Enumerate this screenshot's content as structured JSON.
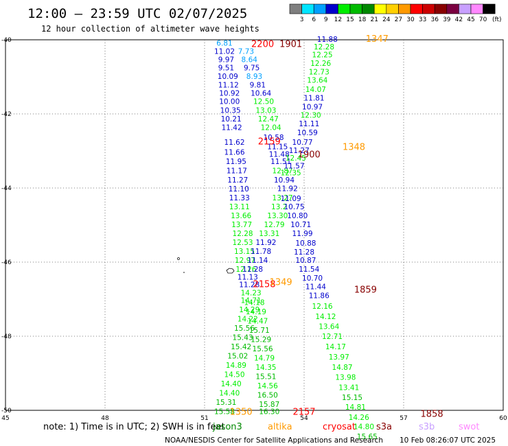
{
  "header": {
    "title": "12:00 — 23:59 UTC 02/07/2025",
    "subtitle": "12 hour collection of altimeter wave heights"
  },
  "legend": {
    "unit": "(ft)",
    "bins": [
      {
        "label": "3",
        "color": "#7f7f7f"
      },
      {
        "label": "6",
        "color": "#00e5ff"
      },
      {
        "label": "9",
        "color": "#00a0ff"
      },
      {
        "label": "12",
        "color": "#0000cc"
      },
      {
        "label": "15",
        "color": "#00ee00"
      },
      {
        "label": "18",
        "color": "#00bb00"
      },
      {
        "label": "21",
        "color": "#008800"
      },
      {
        "label": "24",
        "color": "#ffff00"
      },
      {
        "label": "27",
        "color": "#ffd000"
      },
      {
        "label": "30",
        "color": "#ff9a00"
      },
      {
        "label": "33",
        "color": "#ff0000"
      },
      {
        "label": "36",
        "color": "#cc0000"
      },
      {
        "label": "39",
        "color": "#880000"
      },
      {
        "label": "42",
        "color": "#7a0040"
      },
      {
        "label": "45",
        "color": "#c8a0ff"
      },
      {
        "label": "70",
        "color": "#ff88ff"
      },
      {
        "label": "",
        "color": "#000000"
      }
    ]
  },
  "footer": {
    "note": "note: 1) Time is in UTC; 2) SWH is in feet",
    "satellites": [
      {
        "name": "jason3",
        "color": "#008800"
      },
      {
        "name": "altika",
        "color": "#ff9a00"
      },
      {
        "name": "cryosat",
        "color": "#ff0000"
      },
      {
        "name": "s3a",
        "color": "#880000"
      },
      {
        "name": "s3b",
        "color": "#c8a0ff"
      },
      {
        "name": "swot",
        "color": "#ff88ff"
      }
    ],
    "credit": "NOAA/NESDIS Center for Satellite Applications and Research",
    "timestamp": "10 Feb 08:26:07 UTC 2025"
  },
  "chart_data": {
    "type": "scatter",
    "xlim": [
      45,
      60
    ],
    "ylim": [
      -50,
      -40
    ],
    "xticks": [
      "45",
      "48",
      "51",
      "54",
      "57",
      "60"
    ],
    "yticks": [
      "-40",
      "-42",
      "-44",
      "-46",
      "-48",
      "-50"
    ],
    "grid": true,
    "tracks": [
      {
        "name": "track-left",
        "points": [
          {
            "x": 51.6,
            "y": -40.1,
            "v": "6.81",
            "c": "#00a0ff"
          },
          {
            "x": 51.6,
            "y": -40.32,
            "v": "11.02",
            "c": "#0000cc"
          },
          {
            "x": 51.65,
            "y": -40.55,
            "v": "9.97",
            "c": "#0000cc"
          },
          {
            "x": 51.65,
            "y": -40.77,
            "v": "9.51",
            "c": "#0000cc"
          },
          {
            "x": 51.7,
            "y": -41.0,
            "v": "10.09",
            "c": "#0000cc"
          },
          {
            "x": 51.72,
            "y": -41.23,
            "v": "11.12",
            "c": "#0000cc"
          },
          {
            "x": 51.75,
            "y": -41.45,
            "v": "10.92",
            "c": "#0000cc"
          },
          {
            "x": 51.75,
            "y": -41.68,
            "v": "10.00",
            "c": "#0000cc"
          },
          {
            "x": 51.78,
            "y": -41.92,
            "v": "10.35",
            "c": "#0000cc"
          },
          {
            "x": 51.8,
            "y": -42.15,
            "v": "10.21",
            "c": "#0000cc"
          },
          {
            "x": 51.82,
            "y": -42.38,
            "v": "11.42",
            "c": "#0000cc"
          },
          {
            "x": 51.9,
            "y": -42.78,
            "v": "11.62",
            "c": "#0000cc"
          },
          {
            "x": 51.9,
            "y": -43.05,
            "v": "11.66",
            "c": "#0000cc"
          },
          {
            "x": 51.95,
            "y": -43.3,
            "v": "11.95",
            "c": "#0000cc"
          },
          {
            "x": 51.97,
            "y": -43.55,
            "v": "11.17",
            "c": "#0000cc"
          },
          {
            "x": 52.0,
            "y": -43.8,
            "v": "11.27",
            "c": "#0000cc"
          },
          {
            "x": 52.03,
            "y": -44.04,
            "v": "11.10",
            "c": "#0000cc"
          },
          {
            "x": 52.05,
            "y": -44.28,
            "v": "11.33",
            "c": "#0000cc"
          },
          {
            "x": 52.05,
            "y": -44.52,
            "v": "13.11",
            "c": "#00ee00"
          },
          {
            "x": 52.1,
            "y": -44.76,
            "v": "13.66",
            "c": "#00ee00"
          },
          {
            "x": 52.12,
            "y": -45.0,
            "v": "13.77",
            "c": "#00ee00"
          },
          {
            "x": 52.15,
            "y": -45.24,
            "v": "12.28",
            "c": "#00ee00"
          },
          {
            "x": 52.15,
            "y": -45.48,
            "v": "12.53",
            "c": "#00ee00"
          },
          {
            "x": 52.2,
            "y": -45.72,
            "v": "13.15",
            "c": "#00ee00"
          },
          {
            "x": 52.22,
            "y": -45.96,
            "v": "12.97",
            "c": "#00ee00"
          },
          {
            "x": 52.25,
            "y": -46.2,
            "v": "12.26",
            "c": "#00ee00"
          },
          {
            "x": 52.3,
            "y": -46.42,
            "v": "11.13",
            "c": "#0000cc"
          },
          {
            "x": 52.35,
            "y": -46.62,
            "v": "11.28",
            "c": "#0000cc"
          },
          {
            "x": 52.4,
            "y": -46.84,
            "v": "14.23",
            "c": "#00ee00"
          },
          {
            "x": 52.4,
            "y": -47.05,
            "v": "14.71",
            "c": "#00ee00"
          },
          {
            "x": 52.35,
            "y": -47.3,
            "v": "14.29",
            "c": "#00ee00"
          },
          {
            "x": 52.3,
            "y": -47.55,
            "v": "14.22",
            "c": "#00ee00"
          },
          {
            "x": 52.2,
            "y": -47.8,
            "v": "15.56",
            "c": "#00bb00"
          },
          {
            "x": 52.15,
            "y": -48.05,
            "v": "15.43",
            "c": "#00bb00"
          },
          {
            "x": 52.1,
            "y": -48.3,
            "v": "15.42",
            "c": "#00bb00"
          },
          {
            "x": 52.0,
            "y": -48.55,
            "v": "15.02",
            "c": "#00bb00"
          },
          {
            "x": 51.95,
            "y": -48.8,
            "v": "14.89",
            "c": "#00ee00"
          },
          {
            "x": 51.9,
            "y": -49.05,
            "v": "14.50",
            "c": "#00ee00"
          },
          {
            "x": 51.8,
            "y": -49.3,
            "v": "14.40",
            "c": "#00ee00"
          },
          {
            "x": 51.75,
            "y": -49.55,
            "v": "14.40",
            "c": "#00ee00"
          },
          {
            "x": 51.65,
            "y": -49.8,
            "v": "15.31",
            "c": "#00bb00"
          },
          {
            "x": 51.6,
            "y": -50.05,
            "v": "15.58",
            "c": "#00bb00"
          }
        ]
      },
      {
        "name": "track-middle",
        "points": [
          {
            "x": 52.25,
            "y": -40.32,
            "v": "7.73",
            "c": "#00a0ff"
          },
          {
            "x": 52.35,
            "y": -40.55,
            "v": "8.64",
            "c": "#00a0ff"
          },
          {
            "x": 52.42,
            "y": -40.77,
            "v": "9.75",
            "c": "#0000cc"
          },
          {
            "x": 52.5,
            "y": -41.0,
            "v": "8.93",
            "c": "#00a0ff"
          },
          {
            "x": 52.6,
            "y": -41.23,
            "v": "9.81",
            "c": "#0000cc"
          },
          {
            "x": 52.7,
            "y": -41.45,
            "v": "10.64",
            "c": "#0000cc"
          },
          {
            "x": 52.78,
            "y": -41.68,
            "v": "12.50",
            "c": "#00ee00"
          },
          {
            "x": 52.85,
            "y": -41.92,
            "v": "13.03",
            "c": "#00ee00"
          },
          {
            "x": 52.92,
            "y": -42.15,
            "v": "12.47",
            "c": "#00ee00"
          },
          {
            "x": 53.0,
            "y": -42.38,
            "v": "12.04",
            "c": "#00ee00"
          },
          {
            "x": 53.08,
            "y": -42.65,
            "v": "10.58",
            "c": "#0000cc"
          },
          {
            "x": 53.2,
            "y": -42.9,
            "v": "11.15",
            "c": "#0000cc"
          },
          {
            "x": 53.25,
            "y": -43.1,
            "v": "11.48",
            "c": "#0000cc"
          },
          {
            "x": 53.3,
            "y": -43.3,
            "v": "11.51",
            "c": "#0000cc"
          },
          {
            "x": 53.35,
            "y": -43.55,
            "v": "12.87",
            "c": "#00ee00"
          },
          {
            "x": 53.4,
            "y": -43.8,
            "v": "10.94",
            "c": "#0000cc"
          },
          {
            "x": 53.35,
            "y": -44.28,
            "v": "13.27",
            "c": "#00ee00"
          },
          {
            "x": 53.25,
            "y": -44.52,
            "v": "13.2",
            "c": "#00ee00"
          },
          {
            "x": 53.2,
            "y": -44.76,
            "v": "13.30",
            "c": "#00ee00"
          },
          {
            "x": 53.1,
            "y": -45.0,
            "v": "12.79",
            "c": "#00ee00"
          },
          {
            "x": 52.95,
            "y": -45.24,
            "v": "13.31",
            "c": "#00ee00"
          },
          {
            "x": 52.85,
            "y": -45.48,
            "v": "11.92",
            "c": "#0000cc"
          },
          {
            "x": 52.7,
            "y": -45.72,
            "v": "11.78",
            "c": "#0000cc"
          },
          {
            "x": 52.6,
            "y": -45.96,
            "v": "11.14",
            "c": "#0000cc"
          },
          {
            "x": 52.45,
            "y": -46.2,
            "v": "11.28",
            "c": "#0000cc"
          },
          {
            "x": 52.5,
            "y": -47.1,
            "v": "14.18",
            "c": "#00ee00"
          },
          {
            "x": 52.55,
            "y": -47.35,
            "v": "14.19",
            "c": "#00ee00"
          },
          {
            "x": 52.6,
            "y": -47.6,
            "v": "14.47",
            "c": "#00ee00"
          },
          {
            "x": 52.65,
            "y": -47.85,
            "v": "15.71",
            "c": "#00bb00"
          },
          {
            "x": 52.7,
            "y": -48.1,
            "v": "15.29",
            "c": "#00bb00"
          },
          {
            "x": 52.75,
            "y": -48.35,
            "v": "15.56",
            "c": "#00bb00"
          },
          {
            "x": 52.8,
            "y": -48.6,
            "v": "14.79",
            "c": "#00ee00"
          },
          {
            "x": 52.85,
            "y": -48.85,
            "v": "14.35",
            "c": "#00ee00"
          },
          {
            "x": 52.85,
            "y": -49.1,
            "v": "15.51",
            "c": "#00bb00"
          },
          {
            "x": 52.9,
            "y": -49.35,
            "v": "14.56",
            "c": "#00ee00"
          },
          {
            "x": 52.9,
            "y": -49.6,
            "v": "16.50",
            "c": "#00bb00"
          },
          {
            "x": 52.95,
            "y": -49.85,
            "v": "15.87",
            "c": "#00bb00"
          },
          {
            "x": 52.95,
            "y": -50.05,
            "v": "16.30",
            "c": "#00bb00"
          }
        ]
      },
      {
        "name": "track-right",
        "points": [
          {
            "x": 54.7,
            "y": -40.0,
            "v": "11.88",
            "c": "#0000cc"
          },
          {
            "x": 54.6,
            "y": -40.2,
            "v": "12.28",
            "c": "#00ee00"
          },
          {
            "x": 54.55,
            "y": -40.42,
            "v": "12.25",
            "c": "#00ee00"
          },
          {
            "x": 54.5,
            "y": -40.65,
            "v": "12.26",
            "c": "#00ee00"
          },
          {
            "x": 54.45,
            "y": -40.88,
            "v": "12.73",
            "c": "#00ee00"
          },
          {
            "x": 54.4,
            "y": -41.1,
            "v": "13.64",
            "c": "#00ee00"
          },
          {
            "x": 54.35,
            "y": -41.35,
            "v": "14.07",
            "c": "#00ee00"
          },
          {
            "x": 54.3,
            "y": -41.58,
            "v": "11.81",
            "c": "#0000cc"
          },
          {
            "x": 54.25,
            "y": -41.82,
            "v": "10.97",
            "c": "#0000cc"
          },
          {
            "x": 54.2,
            "y": -42.05,
            "v": "12.30",
            "c": "#00ee00"
          },
          {
            "x": 54.15,
            "y": -42.28,
            "v": "11.11",
            "c": "#0000cc"
          },
          {
            "x": 54.1,
            "y": -42.52,
            "v": "10.59",
            "c": "#0000cc"
          },
          {
            "x": 53.95,
            "y": -42.78,
            "v": "10.77",
            "c": "#0000cc"
          },
          {
            "x": 53.85,
            "y": -43.0,
            "v": "11.27",
            "c": "#0000cc"
          },
          {
            "x": 53.75,
            "y": -43.2,
            "v": "12.45",
            "c": "#00ee00"
          },
          {
            "x": 53.7,
            "y": -43.42,
            "v": "11.57",
            "c": "#0000cc"
          },
          {
            "x": 53.6,
            "y": -43.6,
            "v": "12.35",
            "c": "#00ee00"
          },
          {
            "x": 53.5,
            "y": -44.03,
            "v": "11.92",
            "c": "#0000cc"
          },
          {
            "x": 53.6,
            "y": -44.3,
            "v": "11.09",
            "c": "#0000cc"
          },
          {
            "x": 53.7,
            "y": -44.52,
            "v": "10.75",
            "c": "#0000cc"
          },
          {
            "x": 53.8,
            "y": -44.76,
            "v": "10.80",
            "c": "#0000cc"
          },
          {
            "x": 53.9,
            "y": -45.0,
            "v": "10.71",
            "c": "#0000cc"
          },
          {
            "x": 53.95,
            "y": -45.24,
            "v": "11.99",
            "c": "#0000cc"
          },
          {
            "x": 54.05,
            "y": -45.5,
            "v": "10.88",
            "c": "#0000cc"
          },
          {
            "x": 54.0,
            "y": -45.74,
            "v": "11.28",
            "c": "#0000cc"
          },
          {
            "x": 54.05,
            "y": -45.96,
            "v": "10.87",
            "c": "#0000cc"
          },
          {
            "x": 54.15,
            "y": -46.2,
            "v": "11.54",
            "c": "#0000cc"
          },
          {
            "x": 54.25,
            "y": -46.44,
            "v": "10.70",
            "c": "#0000cc"
          },
          {
            "x": 54.35,
            "y": -46.68,
            "v": "11.44",
            "c": "#0000cc"
          },
          {
            "x": 54.45,
            "y": -46.92,
            "v": "11.86",
            "c": "#0000cc"
          },
          {
            "x": 54.55,
            "y": -47.2,
            "v": "12.16",
            "c": "#00ee00"
          },
          {
            "x": 54.65,
            "y": -47.48,
            "v": "14.12",
            "c": "#00ee00"
          },
          {
            "x": 54.75,
            "y": -47.75,
            "v": "13.64",
            "c": "#00ee00"
          },
          {
            "x": 54.85,
            "y": -48.02,
            "v": "12.71",
            "c": "#00ee00"
          },
          {
            "x": 54.95,
            "y": -48.3,
            "v": "14.17",
            "c": "#00ee00"
          },
          {
            "x": 55.05,
            "y": -48.57,
            "v": "13.97",
            "c": "#00ee00"
          },
          {
            "x": 55.15,
            "y": -48.85,
            "v": "14.87",
            "c": "#00ee00"
          },
          {
            "x": 55.25,
            "y": -49.12,
            "v": "13.98",
            "c": "#00ee00"
          },
          {
            "x": 55.35,
            "y": -49.4,
            "v": "13.41",
            "c": "#00ee00"
          },
          {
            "x": 55.45,
            "y": -49.67,
            "v": "15.15",
            "c": "#00bb00"
          },
          {
            "x": 55.55,
            "y": -49.93,
            "v": "14.81",
            "c": "#00ee00"
          },
          {
            "x": 55.65,
            "y": -50.2,
            "v": "14.26",
            "c": "#00ee00"
          },
          {
            "x": 55.8,
            "y": -50.45,
            "v": "14.80",
            "c": "#00ee00"
          },
          {
            "x": 55.9,
            "y": -50.72,
            "v": "15.65",
            "c": "#00bb00"
          }
        ]
      }
    ],
    "pass_labels": [
      {
        "x": 52.75,
        "y": -40.12,
        "v": "2200",
        "c": "#ff0000"
      },
      {
        "x": 53.6,
        "y": -40.12,
        "v": "1901",
        "c": "#880000"
      },
      {
        "x": 56.2,
        "y": -39.98,
        "v": "1347",
        "c": "#ff9a00"
      },
      {
        "x": 52.95,
        "y": -42.75,
        "v": "2159",
        "c": "#ff0000"
      },
      {
        "x": 55.5,
        "y": -42.9,
        "v": "1348",
        "c": "#ff9a00"
      },
      {
        "x": 54.15,
        "y": -43.1,
        "v": "1900",
        "c": "#880000"
      },
      {
        "x": 52.8,
        "y": -46.6,
        "v": "2158",
        "c": "#ff0000"
      },
      {
        "x": 53.3,
        "y": -46.55,
        "v": "1349",
        "c": "#ff9a00"
      },
      {
        "x": 55.85,
        "y": -46.75,
        "v": "1859",
        "c": "#880000"
      },
      {
        "x": 52.1,
        "y": -50.05,
        "v": "1350",
        "c": "#ff9a00"
      },
      {
        "x": 54.0,
        "y": -50.05,
        "v": "2157",
        "c": "#ff0000"
      },
      {
        "x": 57.85,
        "y": -50.1,
        "v": "1858",
        "c": "#880000"
      }
    ]
  }
}
